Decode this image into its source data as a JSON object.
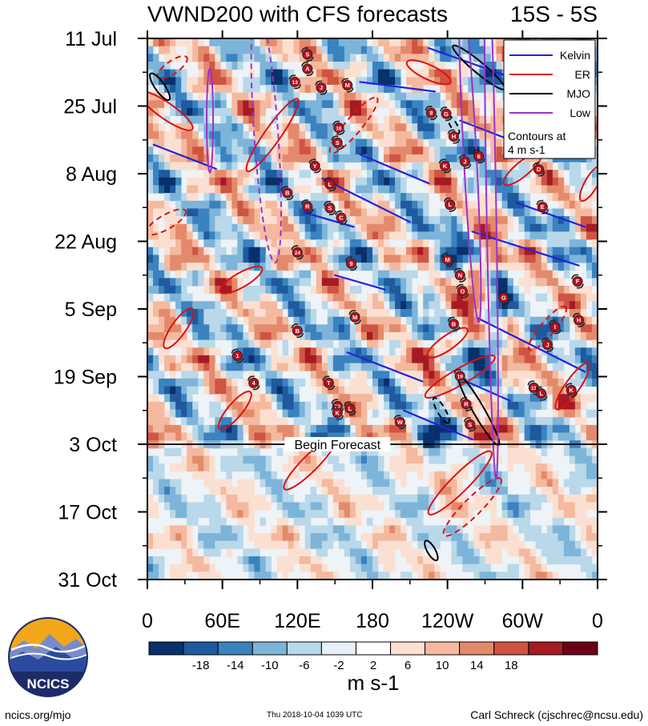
{
  "chart_data": {
    "type": "heatmap",
    "title": "VWND200 with CFS forecasts",
    "region": "15S - 5S",
    "x_ticks": [
      "0",
      "60E",
      "120E",
      "180",
      "120W",
      "60W",
      "0"
    ],
    "x_tick_values": [
      0,
      60,
      120,
      180,
      240,
      300,
      360
    ],
    "xlim": [
      0,
      360
    ],
    "y_ticks": [
      "11 Jul",
      "25 Jul",
      "8 Aug",
      "22 Aug",
      "5 Sep",
      "19 Sep",
      "3 Oct",
      "17 Oct",
      "31 Oct"
    ],
    "y_tick_days": [
      0,
      14,
      28,
      42,
      56,
      70,
      84,
      98,
      112
    ],
    "ylim_days": [
      0,
      112
    ],
    "forecast_start_day": 84,
    "forecast_label": "Begin Forecast",
    "legend": [
      {
        "name": "Kelvin",
        "color": "#2222dd"
      },
      {
        "name": "ER",
        "color": "#dd1111"
      },
      {
        "name": "MJO",
        "color": "#000000"
      },
      {
        "name": "Low",
        "color": "#9933cc"
      }
    ],
    "legend_note": [
      "Contours at",
      "4 m s-1"
    ],
    "colorbar": {
      "ticks": [
        "-18",
        "-14",
        "-10",
        "-6",
        "-2",
        "2",
        "6",
        "10",
        "14",
        "18"
      ],
      "colors": [
        "#08306b",
        "#1f5a9e",
        "#3a82c0",
        "#7db4d9",
        "#b9d8ea",
        "#e6f0f6",
        "#ffffff",
        "#fbe0d2",
        "#f4b99e",
        "#e48a6c",
        "#cf5443",
        "#a51a23",
        "#6b0016"
      ],
      "units": "m s-1"
    },
    "kelvin": [
      {
        "lon0": 5,
        "day0": 22,
        "lon1": 55,
        "day1": 27
      },
      {
        "lon0": 125,
        "day0": 36,
        "lon1": 165,
        "day1": 39
      },
      {
        "lon0": 140,
        "day0": 29,
        "lon1": 210,
        "day1": 38
      },
      {
        "lon0": 170,
        "day0": 24,
        "lon1": 225,
        "day1": 30
      },
      {
        "lon0": 170,
        "day0": 9,
        "lon1": 230,
        "day1": 11
      },
      {
        "lon0": 250,
        "day0": 17,
        "lon1": 290,
        "day1": 21
      },
      {
        "lon0": 265,
        "day0": 58,
        "lon1": 350,
        "day1": 69
      },
      {
        "lon0": 260,
        "day0": 40,
        "lon1": 345,
        "day1": 47
      },
      {
        "lon0": 295,
        "day0": 34,
        "lon1": 350,
        "day1": 39
      },
      {
        "lon0": 150,
        "day0": 49,
        "lon1": 190,
        "day1": 52
      },
      {
        "lon0": 160,
        "day0": 65,
        "lon1": 220,
        "day1": 71
      },
      {
        "lon0": 205,
        "day0": 77,
        "lon1": 260,
        "day1": 83
      },
      {
        "lon0": 255,
        "day0": 71,
        "lon1": 290,
        "day1": 75
      },
      {
        "lon0": 225,
        "day0": 2,
        "lon1": 290,
        "day1": 8
      }
    ],
    "er": [
      {
        "lon": 15,
        "day": 15,
        "rx": 40,
        "ry": 10,
        "rot": 35,
        "dashed": false
      },
      {
        "lon": 15,
        "day": 38,
        "rx": 28,
        "ry": 9,
        "rot": -30,
        "dashed": true
      },
      {
        "lon": 100,
        "day": 20,
        "rx": 55,
        "ry": 10,
        "rot": -55,
        "dashed": false
      },
      {
        "lon": 165,
        "day": 18,
        "rx": 45,
        "ry": 10,
        "rot": -50,
        "dashed": true
      },
      {
        "lon": 75,
        "day": 50,
        "rx": 30,
        "ry": 9,
        "rot": -30,
        "dashed": false
      },
      {
        "lon": 25,
        "day": 60,
        "rx": 30,
        "ry": 9,
        "rot": -55,
        "dashed": false
      },
      {
        "lon": 70,
        "day": 77,
        "rx": 30,
        "ry": 9,
        "rot": -50,
        "dashed": false
      },
      {
        "lon": 130,
        "day": 88,
        "rx": 45,
        "ry": 10,
        "rot": -45,
        "dashed": false
      },
      {
        "lon": 250,
        "day": 92,
        "rx": 55,
        "ry": 11,
        "rot": -45,
        "dashed": false
      },
      {
        "lon": 260,
        "day": 97,
        "rx": 50,
        "ry": 11,
        "rot": -45,
        "dashed": true
      },
      {
        "lon": 250,
        "day": 70,
        "rx": 50,
        "ry": 10,
        "rot": -30,
        "dashed": false
      },
      {
        "lon": 300,
        "day": 27,
        "rx": 30,
        "ry": 9,
        "rot": -40,
        "dashed": false
      },
      {
        "lon": 320,
        "day": 60,
        "rx": 35,
        "ry": 9,
        "rot": -50,
        "dashed": true
      },
      {
        "lon": 340,
        "day": 72,
        "rx": 35,
        "ry": 9,
        "rot": -55,
        "dashed": false
      },
      {
        "lon": 225,
        "day": 7,
        "rx": 30,
        "ry": 9,
        "rot": 25,
        "dashed": false
      },
      {
        "lon": 355,
        "day": 30,
        "rx": 25,
        "ry": 8,
        "rot": -60,
        "dashed": false
      },
      {
        "lon": 240,
        "day": 63,
        "rx": 30,
        "ry": 9,
        "rot": -35,
        "dashed": false
      },
      {
        "lon": 20,
        "day": 6,
        "rx": 22,
        "ry": 8,
        "rot": -35,
        "dashed": true
      }
    ],
    "mjo": [
      {
        "lon": 10,
        "day": 10,
        "rx": 20,
        "ry": 6,
        "rot": 55,
        "dashed": false
      },
      {
        "lon": 265,
        "day": 6,
        "rx": 42,
        "ry": 7,
        "rot": 40,
        "dashed": false
      },
      {
        "lon": 265,
        "day": 77,
        "rx": 50,
        "ry": 7,
        "rot": 60,
        "dashed": false
      },
      {
        "lon": 235,
        "day": 77,
        "rx": 18,
        "ry": 5,
        "rot": 60,
        "dashed": true
      },
      {
        "lon": 227,
        "day": 106,
        "rx": 14,
        "ry": 5,
        "rot": 60,
        "dashed": false
      },
      {
        "lon": 245,
        "day": 18,
        "rx": 12,
        "ry": 4,
        "rot": 60,
        "dashed": true
      }
    ],
    "low": [
      {
        "lon": 50,
        "day": 17,
        "rx": 4,
        "ry": 65,
        "rot": 0,
        "dashed": false
      },
      {
        "lon": 95,
        "day": 20,
        "rx": 15,
        "ry": 160,
        "rot": -4,
        "dashed": true
      },
      {
        "lon": 258,
        "day": 24,
        "rx": 8,
        "ry": 210,
        "rot": -3,
        "dashed": false
      },
      {
        "lon": 275,
        "day": 34,
        "rx": 6,
        "ry": 345,
        "rot": -1,
        "dashed": false
      }
    ],
    "storms": [
      {
        "label": "S",
        "lon": 128,
        "day": 3.3
      },
      {
        "label": "A",
        "lon": 128,
        "day": 6.3
      },
      {
        "label": "13",
        "lon": 118,
        "day": 9
      },
      {
        "label": "J",
        "lon": 139,
        "day": 10.2
      },
      {
        "label": "M",
        "lon": 160,
        "day": 9.7
      },
      {
        "label": "16",
        "lon": 153,
        "day": 18.5
      },
      {
        "label": "S",
        "lon": 152,
        "day": 21.6
      },
      {
        "label": "Y",
        "lon": 134,
        "day": 26.4
      },
      {
        "label": "L",
        "lon": 146,
        "day": 30.2
      },
      {
        "label": "B",
        "lon": 112,
        "day": 32
      },
      {
        "label": "R",
        "lon": 128,
        "day": 34.8
      },
      {
        "label": "S",
        "lon": 146,
        "day": 35.1
      },
      {
        "label": "C",
        "lon": 155,
        "day": 37.1
      },
      {
        "label": "24",
        "lon": 120,
        "day": 44.3
      },
      {
        "label": "9",
        "lon": 163,
        "day": 46.6
      },
      {
        "label": "M",
        "lon": 166,
        "day": 57.7
      },
      {
        "label": "B",
        "lon": 120,
        "day": 60.5
      },
      {
        "label": "1",
        "lon": 72,
        "day": 65.7
      },
      {
        "label": "4",
        "lon": 85,
        "day": 71.3
      },
      {
        "label": "T",
        "lon": 145,
        "day": 71.3
      },
      {
        "label": "20",
        "lon": 152,
        "day": 76.1
      },
      {
        "label": "K",
        "lon": 152,
        "day": 77.5
      },
      {
        "label": "L",
        "lon": 162,
        "day": 76.6
      },
      {
        "label": "W",
        "lon": 202,
        "day": 79.4
      },
      {
        "label": "9",
        "lon": 227,
        "day": 15.4
      },
      {
        "label": "G",
        "lon": 239,
        "day": 15.6
      },
      {
        "label": "H",
        "lon": 245,
        "day": 20.3
      },
      {
        "label": "K",
        "lon": 238,
        "day": 26.4
      },
      {
        "label": "J",
        "lon": 254,
        "day": 25.5
      },
      {
        "label": "6",
        "lon": 265,
        "day": 24.4
      },
      {
        "label": "L",
        "lon": 242,
        "day": 34.4
      },
      {
        "label": "D",
        "lon": 313,
        "day": 27.1
      },
      {
        "label": "E",
        "lon": 316,
        "day": 34.9
      },
      {
        "label": "M",
        "lon": 240,
        "day": 45.8
      },
      {
        "label": "N",
        "lon": 250,
        "day": 49
      },
      {
        "label": "O",
        "lon": 252,
        "day": 52.3
      },
      {
        "label": "G",
        "lon": 285,
        "day": 53.7
      },
      {
        "label": "F",
        "lon": 344,
        "day": 50.3
      },
      {
        "label": "H",
        "lon": 345,
        "day": 58.3
      },
      {
        "label": "I",
        "lon": 326,
        "day": 59.7
      },
      {
        "label": "B",
        "lon": 245,
        "day": 59.1
      },
      {
        "label": "J",
        "lon": 320,
        "day": 63.4
      },
      {
        "label": "19",
        "lon": 250,
        "day": 69.9
      },
      {
        "label": "R",
        "lon": 255,
        "day": 75.7
      },
      {
        "label": "S",
        "lon": 258,
        "day": 79.9
      },
      {
        "label": "11",
        "lon": 309,
        "day": 72.3
      },
      {
        "label": "L",
        "lon": 315,
        "day": 73.5
      },
      {
        "label": "K",
        "lon": 339,
        "day": 72.8
      }
    ]
  },
  "footer": {
    "left": "ncics.org/mjo",
    "center": "Thu 2018-10-04 1039 UTC",
    "right": "Carl Schreck (cjschrec@ncsu.edu)"
  },
  "logo": {
    "text": "NCICS",
    "colors": {
      "sky": "#f2a71b",
      "ring": "#1d2b66",
      "mountain": "#2c4a9e",
      "mountain_light": "#7a8cc8"
    }
  }
}
